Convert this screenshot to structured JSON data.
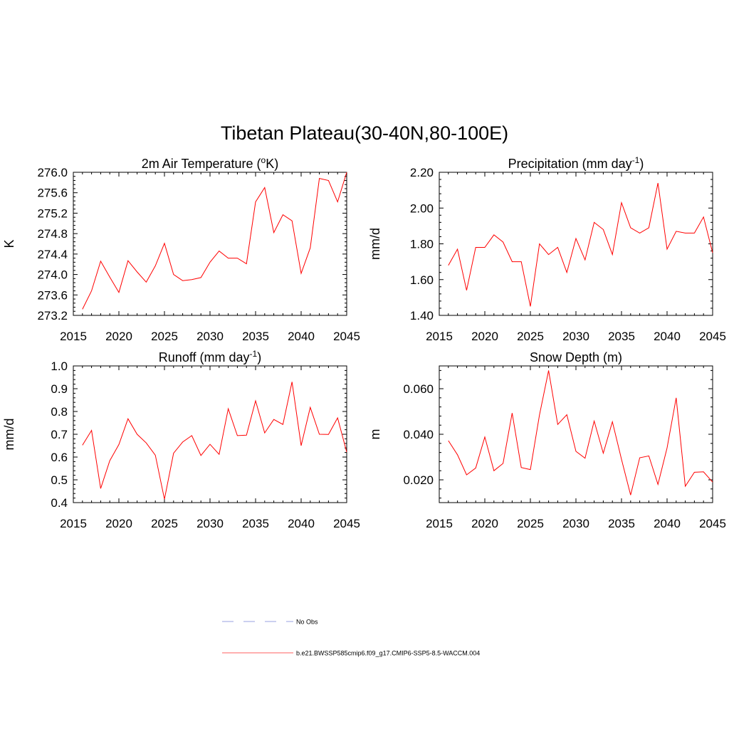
{
  "main_title": "Tibetan Plateau(30-40N,80-100E)",
  "legend": {
    "entries": [
      {
        "label": "No Obs",
        "color": "#9aa0e0",
        "dash": true
      },
      {
        "label": "b.e21.BWSSP585cmip6.f09_g17.CMIP6-SSP5-8.5-WACCM.004",
        "color": "#ff6060",
        "dash": false
      }
    ]
  },
  "chart_data": [
    {
      "type": "line",
      "title_main": "2m Air Temperature (",
      "title_sup_left": "o",
      "title_after": "K)",
      "ylabel": "K",
      "xlim": [
        2015,
        2045
      ],
      "ylim": [
        273.2,
        276.0
      ],
      "xticks": [
        "2015",
        "2020",
        "2025",
        "2030",
        "2035",
        "2040",
        "2045"
      ],
      "yticks": [
        "273.2",
        "273.6",
        "274.0",
        "274.4",
        "274.8",
        "275.2",
        "275.6",
        "276.0"
      ],
      "series": [
        {
          "color": "#ff0000",
          "x": [
            2016,
            2017,
            2018,
            2019,
            2020,
            2021,
            2022,
            2023,
            2024,
            2025,
            2026,
            2027,
            2028,
            2029,
            2030,
            2031,
            2032,
            2033,
            2034,
            2035,
            2036,
            2037,
            2038,
            2039,
            2040,
            2041,
            2042,
            2043,
            2044,
            2045
          ],
          "y": [
            273.32,
            273.68,
            274.26,
            273.95,
            273.65,
            274.27,
            274.05,
            273.85,
            274.17,
            274.61,
            274.0,
            273.88,
            273.9,
            273.94,
            274.24,
            274.46,
            274.32,
            274.32,
            274.21,
            275.42,
            275.7,
            274.82,
            275.17,
            275.05,
            274.02,
            274.52,
            275.88,
            275.84,
            275.42,
            276.0
          ]
        }
      ]
    },
    {
      "type": "line",
      "title_main": "Precipitation (mm day",
      "title_sup_right": "-1",
      "title_after": ")",
      "ylabel": "mm/d",
      "xlim": [
        2015,
        2045
      ],
      "ylim": [
        1.4,
        2.2
      ],
      "xticks": [
        "2015",
        "2020",
        "2025",
        "2030",
        "2035",
        "2040",
        "2045"
      ],
      "yticks": [
        "1.40",
        "1.60",
        "1.80",
        "2.00",
        "2.20"
      ],
      "series": [
        {
          "color": "#ff0000",
          "x": [
            2016,
            2017,
            2018,
            2019,
            2020,
            2021,
            2022,
            2023,
            2024,
            2025,
            2026,
            2027,
            2028,
            2029,
            2030,
            2031,
            2032,
            2033,
            2034,
            2035,
            2036,
            2037,
            2038,
            2039,
            2040,
            2041,
            2042,
            2043,
            2044,
            2045
          ],
          "y": [
            1.68,
            1.77,
            1.54,
            1.78,
            1.78,
            1.85,
            1.81,
            1.7,
            1.7,
            1.45,
            1.8,
            1.74,
            1.78,
            1.64,
            1.83,
            1.71,
            1.92,
            1.88,
            1.74,
            2.03,
            1.89,
            1.86,
            1.89,
            2.14,
            1.77,
            1.87,
            1.86,
            1.86,
            1.95,
            1.75
          ]
        }
      ]
    },
    {
      "type": "line",
      "title_main": "Runoff (mm day",
      "title_sup_right": "-1",
      "title_after": ")",
      "ylabel": "mm/d",
      "xlim": [
        2015,
        2045
      ],
      "ylim": [
        0.4,
        1.0
      ],
      "xticks": [
        "2015",
        "2020",
        "2025",
        "2030",
        "2035",
        "2040",
        "2045"
      ],
      "yticks": [
        "0.4",
        "0.5",
        "0.6",
        "0.7",
        "0.8",
        "0.9",
        "1.0"
      ],
      "series": [
        {
          "color": "#ff0000",
          "x": [
            2016,
            2017,
            2018,
            2019,
            2020,
            2021,
            2022,
            2023,
            2024,
            2025,
            2026,
            2027,
            2028,
            2029,
            2030,
            2031,
            2032,
            2033,
            2034,
            2035,
            2036,
            2037,
            2038,
            2039,
            2040,
            2041,
            2042,
            2043,
            2044,
            2045
          ],
          "y": [
            0.652,
            0.717,
            0.462,
            0.584,
            0.655,
            0.768,
            0.7,
            0.662,
            0.608,
            0.415,
            0.617,
            0.666,
            0.694,
            0.607,
            0.656,
            0.612,
            0.812,
            0.694,
            0.696,
            0.847,
            0.706,
            0.765,
            0.743,
            0.93,
            0.65,
            0.818,
            0.7,
            0.699,
            0.772,
            0.622
          ]
        }
      ]
    },
    {
      "type": "line",
      "title_main": "Snow Depth (m)",
      "ylabel": "m",
      "xlim": [
        2015,
        2045
      ],
      "ylim": [
        0.01,
        0.07
      ],
      "xticks": [
        "2015",
        "2020",
        "2025",
        "2030",
        "2035",
        "2040",
        "2045"
      ],
      "ytick_values": [
        0.02,
        0.04,
        0.06
      ],
      "yticks": [
        "0.020",
        "0.040",
        "0.060"
      ],
      "series": [
        {
          "color": "#ff0000",
          "x": [
            2016,
            2017,
            2018,
            2019,
            2020,
            2021,
            2022,
            2023,
            2024,
            2025,
            2026,
            2027,
            2028,
            2029,
            2030,
            2031,
            2032,
            2033,
            2034,
            2035,
            2036,
            2037,
            2038,
            2039,
            2040,
            2041,
            2042,
            2043,
            2044,
            2045
          ],
          "y": [
            0.0372,
            0.031,
            0.0222,
            0.0252,
            0.0388,
            0.024,
            0.0272,
            0.0493,
            0.0254,
            0.0245,
            0.0485,
            0.068,
            0.0443,
            0.0486,
            0.0325,
            0.0295,
            0.0458,
            0.0317,
            0.0455,
            0.029,
            0.0133,
            0.0297,
            0.0305,
            0.018,
            0.034,
            0.056,
            0.0172,
            0.0233,
            0.0235,
            0.019
          ]
        }
      ]
    }
  ]
}
